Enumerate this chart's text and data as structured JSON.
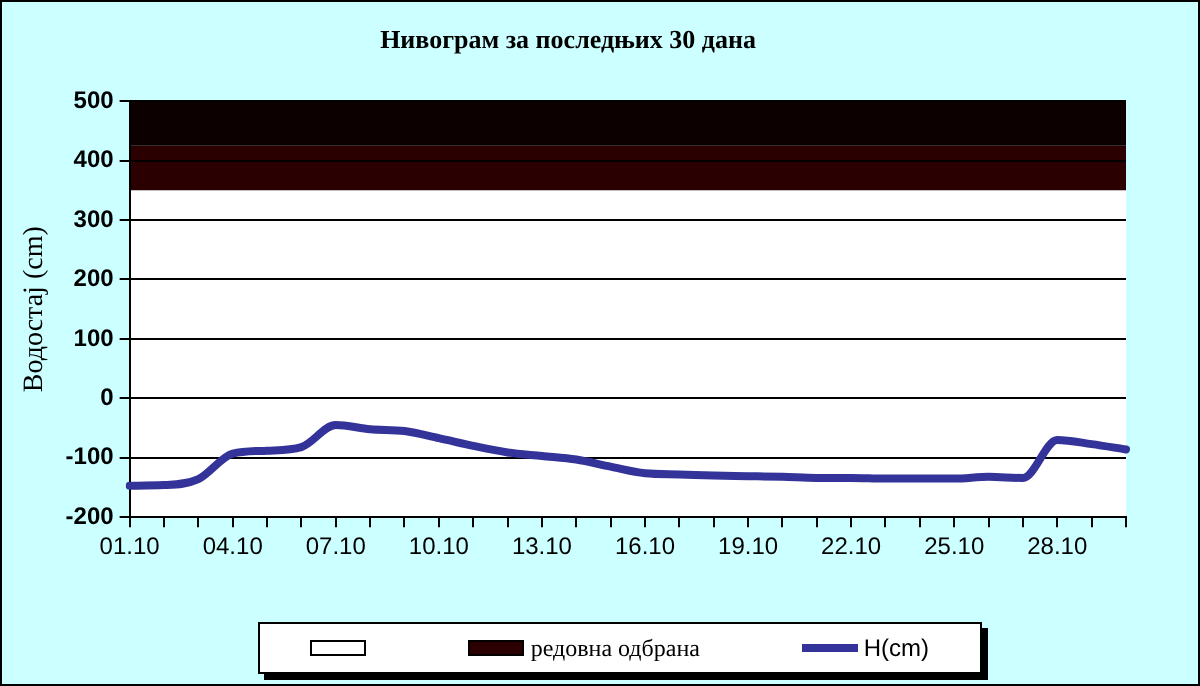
{
  "chart_data": {
    "type": "line",
    "title": "Нивограм за последњих 30 дана",
    "ylabel": "Водостај (cm)",
    "categories": [
      "01.10",
      null,
      null,
      "04.10",
      null,
      null,
      "07.10",
      null,
      null,
      "10.10",
      null,
      null,
      "13.10",
      null,
      null,
      "16.10",
      null,
      null,
      "19.10",
      null,
      null,
      "22.10",
      null,
      null,
      "25.10",
      null,
      null,
      "28.10",
      null,
      null
    ],
    "series": [
      {
        "name": "H(cm)",
        "color": "#333399",
        "values": [
          -147,
          -146,
          -136,
          -93,
          -88,
          -82,
          -45,
          -52,
          -55,
          -67,
          -80,
          -91,
          -97,
          -103,
          -115,
          -126,
          -128,
          -130,
          -131,
          -132,
          -134,
          -134,
          -135,
          -135,
          -135,
          -132,
          -134,
          -70,
          -77,
          -86
        ]
      }
    ],
    "ylim": [
      -200,
      500
    ],
    "yticks": [
      -200,
      -100,
      0,
      100,
      200,
      300,
      400,
      500
    ],
    "bands": [
      {
        "axis": "y",
        "from": -200,
        "to": 350,
        "color": "#ffffff"
      },
      {
        "axis": "y",
        "from": 350,
        "to": 425,
        "label": "редовна одбрана",
        "color": "#2a0000"
      },
      {
        "axis": "y",
        "from": 425,
        "to": 500,
        "color": "#0c0000"
      }
    ],
    "grid": "y",
    "legend": "bottom",
    "marker": "none",
    "line_style": "solid"
  }
}
